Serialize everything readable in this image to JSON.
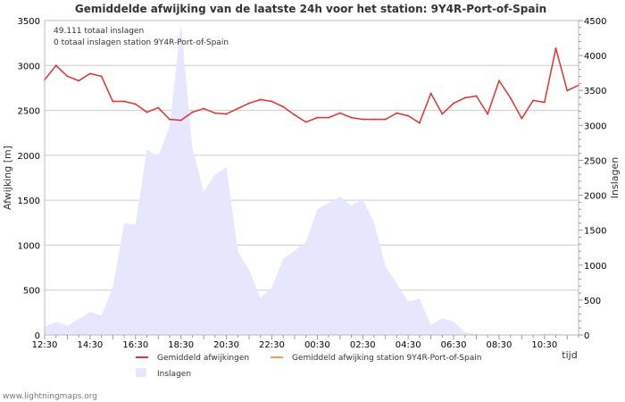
{
  "chart_data": {
    "type": "line",
    "title": "Gemiddelde afwijking van de laatste 24h voor het station: 9Y4R-Port-of-Spain",
    "xlabel": "tijd",
    "ylabel": "Afwijking  [m]",
    "y2label": "Inslagen",
    "ylim": [
      0,
      3500
    ],
    "y2lim": [
      0,
      4500
    ],
    "y_ticks": [
      0,
      500,
      1000,
      1500,
      2000,
      2500,
      3000,
      3500
    ],
    "y2_ticks": [
      0,
      500,
      1000,
      1500,
      2000,
      2500,
      3000,
      3500,
      4000,
      4500
    ],
    "x_tick_labels": [
      "12:30",
      "14:30",
      "16:30",
      "18:30",
      "20:30",
      "22:30",
      "00:30",
      "02:30",
      "04:30",
      "06:30",
      "08:30",
      "10:30"
    ],
    "x_count": 48,
    "info_lines": [
      "49.111 totaal inslagen",
      "0 totaal inslagen station 9Y4R-Port-of-Spain"
    ],
    "series": [
      {
        "name": "Gemiddeld afwijkingen",
        "axis": "left",
        "kind": "line",
        "color": "#dd3333",
        "values": [
          2840,
          3000,
          2880,
          2830,
          2910,
          2880,
          2600,
          2600,
          2570,
          2480,
          2530,
          2400,
          2390,
          2480,
          2520,
          2470,
          2460,
          2520,
          2580,
          2620,
          2600,
          2540,
          2450,
          2370,
          2420,
          2420,
          2470,
          2420,
          2400,
          2400,
          2400,
          2470,
          2440,
          2360,
          2690,
          2460,
          2580,
          2640,
          2660,
          2460,
          2830,
          2640,
          2410,
          2610,
          2590,
          3190,
          2720,
          2780
        ]
      },
      {
        "name": "Gemiddeld afwijking station 9Y4R-Port-of-Spain",
        "axis": "left",
        "kind": "line",
        "color": "#ff9944",
        "values": []
      },
      {
        "name": "Inslagen",
        "axis": "right",
        "kind": "area",
        "color": "#e6e6ff",
        "values": [
          120,
          190,
          130,
          230,
          330,
          280,
          680,
          1600,
          1580,
          2650,
          2560,
          2980,
          4450,
          2680,
          2050,
          2300,
          2400,
          1200,
          930,
          530,
          680,
          1090,
          1210,
          1330,
          1800,
          1890,
          1980,
          1850,
          1950,
          1600,
          990,
          730,
          480,
          520,
          140,
          240,
          190,
          40,
          10,
          0,
          0,
          0,
          0,
          0,
          20,
          20,
          0,
          0
        ]
      }
    ]
  },
  "credit": "www.lightningmaps.org"
}
